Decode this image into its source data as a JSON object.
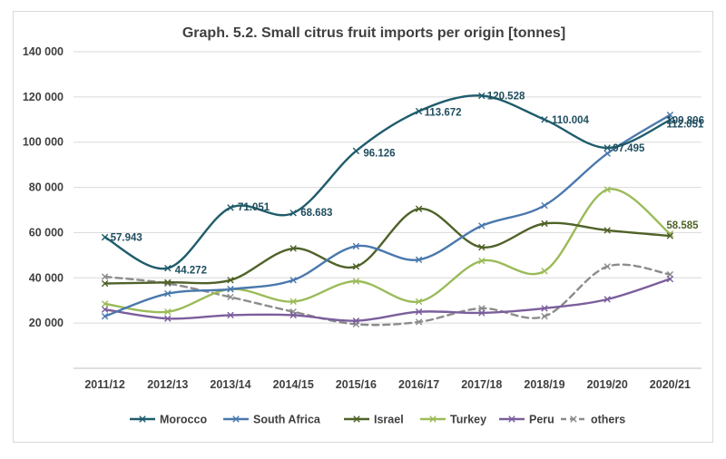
{
  "chart_data": {
    "type": "line",
    "title": "Graph. 5.2. Small citrus fruit imports per origin [tonnes]",
    "xlabel": "",
    "ylabel": "",
    "categories": [
      "2011/12",
      "2012/13",
      "2013/14",
      "2014/15",
      "2015/16",
      "2016/17",
      "2017/18",
      "2018/19",
      "2019/20",
      "2020/21"
    ],
    "ylim": [
      0,
      140000
    ],
    "yticks": [
      20000,
      40000,
      60000,
      80000,
      100000,
      120000,
      140000
    ],
    "ytick_labels": [
      "20 000",
      "40 000",
      "60 000",
      "80 000",
      "100 000",
      "120 000",
      "140 000"
    ],
    "grid": true,
    "legend_position": "bottom",
    "series": [
      {
        "name": "Morocco",
        "color": "#1f5c6b",
        "dashed": false,
        "values": [
          57943,
          44272,
          71051,
          68683,
          96126,
          113672,
          120528,
          110004,
          97495,
          109806
        ],
        "labels": [
          "57.943",
          "44.272",
          "71.051",
          "68.683",
          "96.126",
          "113.672",
          "120.528",
          "110.004",
          "97.495",
          "109.806"
        ]
      },
      {
        "name": "South Africa",
        "color": "#4a78ad",
        "dashed": false,
        "values": [
          23000,
          33000,
          35000,
          39000,
          54000,
          48000,
          63000,
          72000,
          95000,
          112051
        ],
        "labels": [
          "",
          "",
          "",
          "",
          "",
          "",
          "",
          "",
          "",
          "112.051"
        ]
      },
      {
        "name": "Israel",
        "color": "#4f6228",
        "dashed": false,
        "values": [
          37500,
          38000,
          39000,
          53000,
          45000,
          70500,
          53500,
          64000,
          61000,
          58585
        ],
        "labels": [
          "",
          "",
          "",
          "",
          "",
          "",
          "",
          "",
          "",
          "58.585"
        ]
      },
      {
        "name": "Turkey",
        "color": "#9bbb59",
        "dashed": false,
        "values": [
          28500,
          25000,
          35000,
          29500,
          38500,
          29500,
          47500,
          43000,
          79000,
          59500
        ],
        "labels": [
          "",
          "",
          "",
          "",
          "",
          "",
          "",
          "",
          "",
          ""
        ]
      },
      {
        "name": "Peru",
        "color": "#7b5e9c",
        "dashed": false,
        "values": [
          26000,
          22000,
          23500,
          23500,
          21000,
          25000,
          24500,
          26500,
          30500,
          39500
        ],
        "labels": [
          "",
          "",
          "",
          "",
          "",
          "",
          "",
          "",
          "",
          ""
        ]
      },
      {
        "name": "others",
        "color": "#8c8c8c",
        "dashed": true,
        "values": [
          40500,
          37500,
          31500,
          25000,
          19500,
          20500,
          26500,
          23000,
          45000,
          41500
        ],
        "labels": [
          "",
          "",
          "",
          "",
          "",
          "",
          "",
          "",
          "",
          ""
        ]
      }
    ]
  }
}
